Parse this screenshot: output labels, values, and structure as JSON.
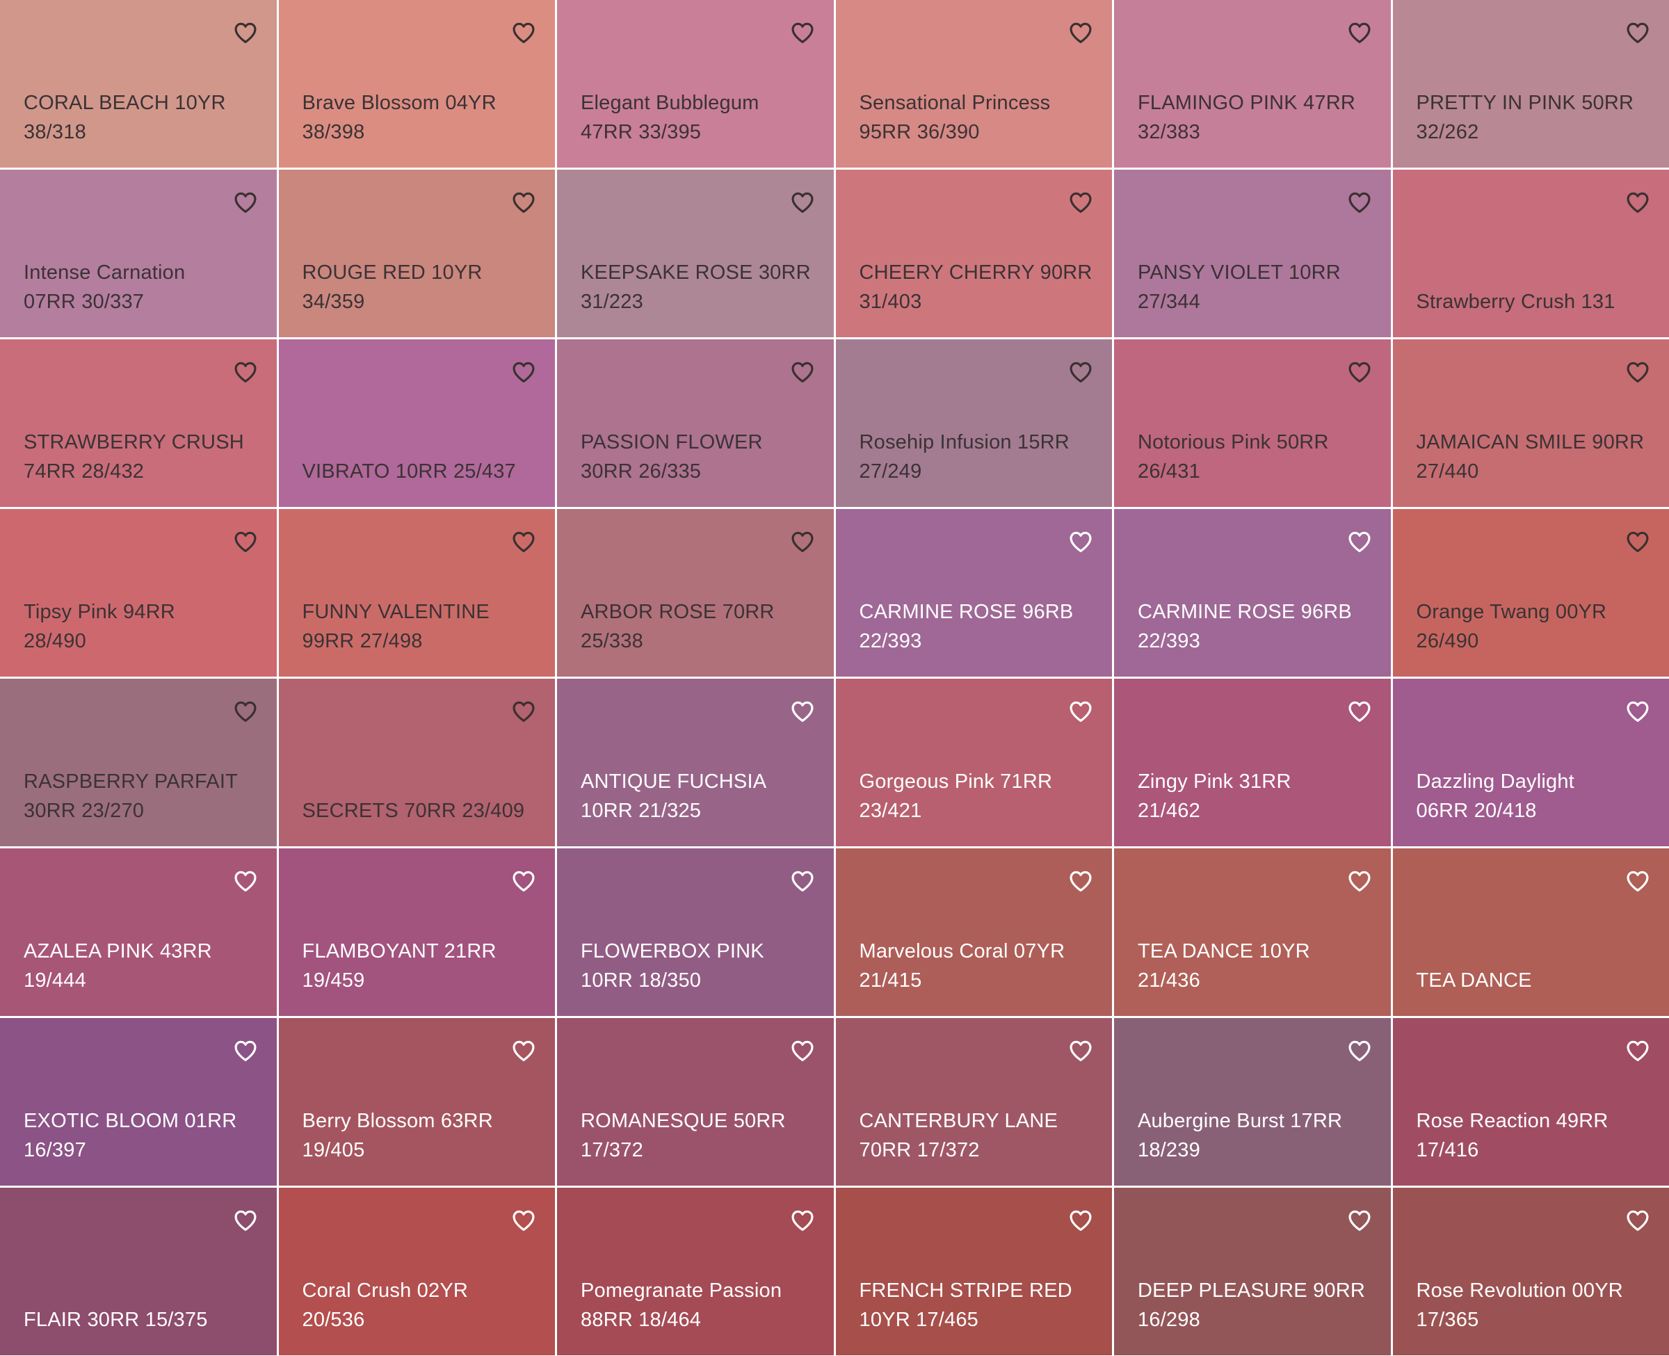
{
  "swatches": [
    {
      "line1": "CORAL BEACH 10YR",
      "line2": "38/318",
      "color": "#d1978b",
      "text": "dark"
    },
    {
      "line1": "Brave Blossom 04YR",
      "line2": "38/398",
      "color": "#db8d82",
      "text": "dark"
    },
    {
      "line1": "Elegant Bubblegum",
      "line2": "47RR 33/395",
      "color": "#c97f98",
      "text": "dark"
    },
    {
      "line1": "Sensational Princess",
      "line2": "95RR 36/390",
      "color": "#d68985",
      "text": "dark"
    },
    {
      "line1": "FLAMINGO PINK 47RR",
      "line2": "32/383",
      "color": "#c67f98",
      "text": "dark"
    },
    {
      "line1": "PRETTY IN PINK 50RR",
      "line2": "32/262",
      "color": "#b88894",
      "text": "dark"
    },
    {
      "line1": "Intense Carnation",
      "line2": "07RR 30/337",
      "color": "#b47e9f",
      "text": "dark"
    },
    {
      "line1": "ROUGE RED 10YR",
      "line2": "34/359",
      "color": "#ca877e",
      "text": "dark"
    },
    {
      "line1": "KEEPSAKE ROSE 30RR",
      "line2": "31/223",
      "color": "#ae8796",
      "text": "dark"
    },
    {
      "line1": "CHEERY CHERRY 90RR",
      "line2": "31/403",
      "color": "#cd777c",
      "text": "dark"
    },
    {
      "line1": "PANSY VIOLET 10RR",
      "line2": "27/344",
      "color": "#ad789b",
      "text": "dark"
    },
    {
      "line1": "",
      "line2": "Strawberry Crush 131",
      "color": "#c76d7b",
      "text": "dark"
    },
    {
      "line1": "STRAWBERRY CRUSH",
      "line2": "74RR 28/432",
      "color": "#c96d7a",
      "text": "dark"
    },
    {
      "line1": "",
      "line2": "VIBRATO 10RR 25/437",
      "color": "#b0699a",
      "text": "dark"
    },
    {
      "line1": "PASSION FLOWER",
      "line2": "30RR 26/335",
      "color": "#ad738f",
      "text": "dark"
    },
    {
      "line1": "Rosehip Infusion 15RR",
      "line2": "27/249",
      "color": "#a37c91",
      "text": "dark"
    },
    {
      "line1": "Notorious Pink 50RR",
      "line2": "26/431",
      "color": "#bf677f",
      "text": "dark"
    },
    {
      "line1": "JAMAICAN SMILE 90RR",
      "line2": "27/440",
      "color": "#c66d72",
      "text": "dark"
    },
    {
      "line1": "Tipsy Pink 94RR",
      "line2": "28/490",
      "color": "#cd696e",
      "text": "dark"
    },
    {
      "line1": "FUNNY VALENTINE",
      "line2": "99RR 27/498",
      "color": "#cb6b67",
      "text": "dark"
    },
    {
      "line1": "ARBOR ROSE 70RR",
      "line2": "25/338",
      "color": "#b1717a",
      "text": "dark"
    },
    {
      "line1": "CARMINE ROSE 96RB",
      "line2": "22/393",
      "color": "#a06896",
      "text": "light"
    },
    {
      "line1": "CARMINE ROSE 96RB",
      "line2": "22/393",
      "color": "#9f6896",
      "text": "light"
    },
    {
      "line1": "Orange Twang 00YR",
      "line2": "26/490",
      "color": "#c6655f",
      "text": "dark"
    },
    {
      "line1": "RASPBERRY PARFAIT",
      "line2": "30RR 23/270",
      "color": "#9b6e7e",
      "text": "dark"
    },
    {
      "line1": "",
      "line2": "SECRETS 70RR 23/409",
      "color": "#b3626f",
      "text": "dark"
    },
    {
      "line1": "ANTIQUE FUCHSIA",
      "line2": "10RR 21/325",
      "color": "#986588",
      "text": "light"
    },
    {
      "line1": "Gorgeous Pink 71RR",
      "line2": "23/421",
      "color": "#b8606f",
      "text": "light"
    },
    {
      "line1": "Zingy Pink 31RR",
      "line2": "21/462",
      "color": "#ac5679",
      "text": "light"
    },
    {
      "line1": "Dazzling Daylight",
      "line2": "06RR 20/418",
      "color": "#a05b8f",
      "text": "light"
    },
    {
      "line1": "AZALEA PINK 43RR",
      "line2": "19/444",
      "color": "#a85675",
      "text": "light"
    },
    {
      "line1": "FLAMBOYANT 21RR",
      "line2": "19/459",
      "color": "#a2537e",
      "text": "light"
    },
    {
      "line1": "FLOWERBOX PINK",
      "line2": "10RR 18/350",
      "color": "#925d84",
      "text": "light"
    },
    {
      "line1": "Marvelous Coral 07YR",
      "line2": "21/415",
      "color": "#ae5e59",
      "text": "light"
    },
    {
      "line1": "TEA DANCE 10YR",
      "line2": "21/436",
      "color": "#b06058",
      "text": "light"
    },
    {
      "line1": "",
      "line2": "TEA DANCE",
      "color": "#af5f56",
      "text": "light"
    },
    {
      "line1": "EXOTIC BLOOM 01RR",
      "line2": "16/397",
      "color": "#8b5386",
      "text": "light"
    },
    {
      "line1": "Berry Blossom 63RR",
      "line2": "19/405",
      "color": "#a5555f",
      "text": "light"
    },
    {
      "line1": "ROMANESQUE 50RR",
      "line2": "17/372",
      "color": "#9b536b",
      "text": "light"
    },
    {
      "line1": "CANTERBURY LANE",
      "line2": "70RR 17/372",
      "color": "#9f5766",
      "text": "light"
    },
    {
      "line1": "Aubergine Burst 17RR",
      "line2": "18/239",
      "color": "#896177",
      "text": "light"
    },
    {
      "line1": "Rose Reaction 49RR",
      "line2": "17/416",
      "color": "#a04d64",
      "text": "light"
    },
    {
      "line1": "",
      "line2": "FLAIR 30RR 15/375",
      "color": "#8d4d6d",
      "text": "light"
    },
    {
      "line1": "Coral Crush 02YR",
      "line2": "20/536",
      "color": "#b34f4f",
      "text": "light"
    },
    {
      "line1": "Pomegranate Passion",
      "line2": "88RR 18/464",
      "color": "#a54b55",
      "text": "light"
    },
    {
      "line1": "FRENCH STRIPE RED",
      "line2": "10YR 17/465",
      "color": "#a64f4b",
      "text": "light"
    },
    {
      "line1": "DEEP PLEASURE 90RR",
      "line2": "16/298",
      "color": "#925659",
      "text": "light"
    },
    {
      "line1": "Rose Revolution 00YR",
      "line2": "17/365",
      "color": "#9a5352",
      "text": "light"
    }
  ],
  "icons": {
    "favorite": "heart-outline-icon"
  }
}
